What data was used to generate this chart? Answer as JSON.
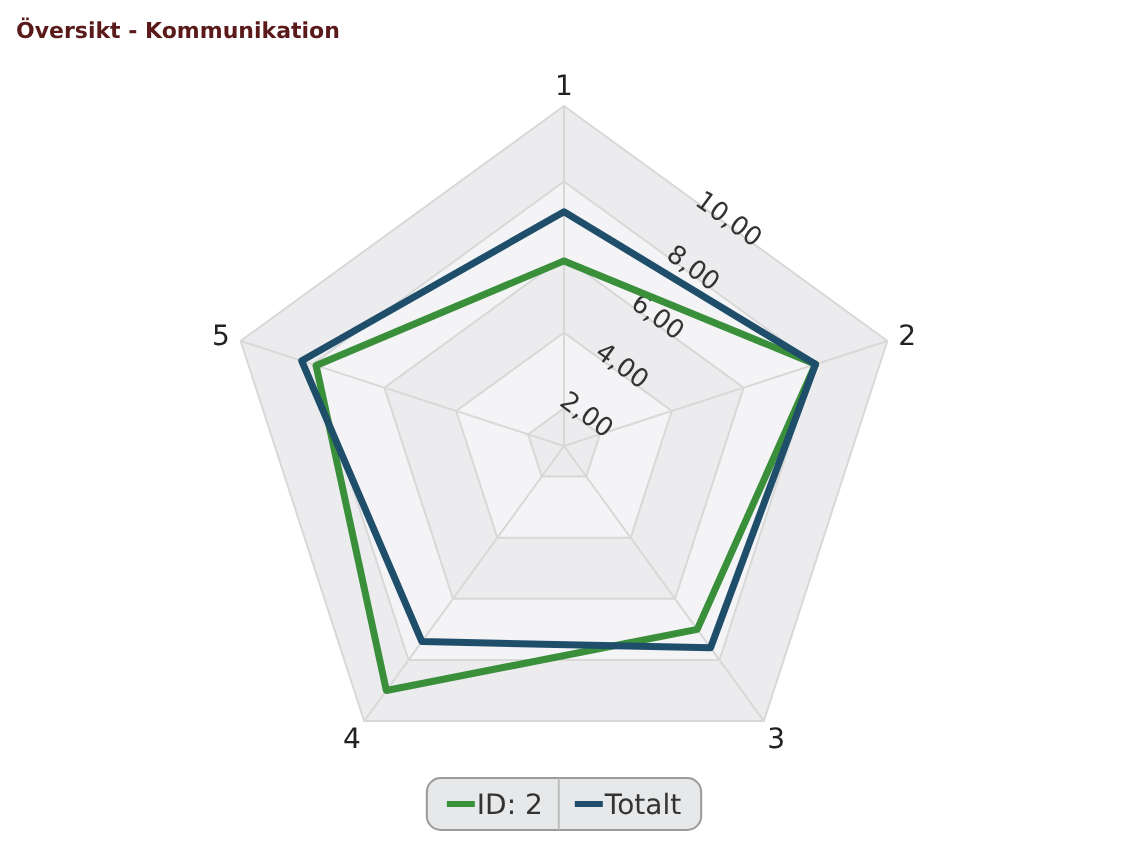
{
  "chart_data": {
    "type": "radar",
    "title": "Översikt - Kommunikation",
    "categories": [
      "1",
      "2",
      "3",
      "4",
      "5"
    ],
    "series": [
      {
        "name": "ID: 2",
        "color": "#3a8f3a",
        "values": [
          5.9,
          8.0,
          7.0,
          9.0,
          7.9
        ]
      },
      {
        "name": "Totalt",
        "color": "#1f4e6b",
        "values": [
          7.2,
          8.0,
          7.6,
          7.4,
          8.3
        ]
      }
    ],
    "ylim": [
      1,
      10
    ],
    "yticks": [
      {
        "value": 2,
        "label": "2,00"
      },
      {
        "value": 4,
        "label": "4,00"
      },
      {
        "value": 6,
        "label": "6,00"
      },
      {
        "value": 8,
        "label": "8,00"
      },
      {
        "value": 10,
        "label": "10,00"
      }
    ],
    "legend": "bottom",
    "grid": true
  }
}
